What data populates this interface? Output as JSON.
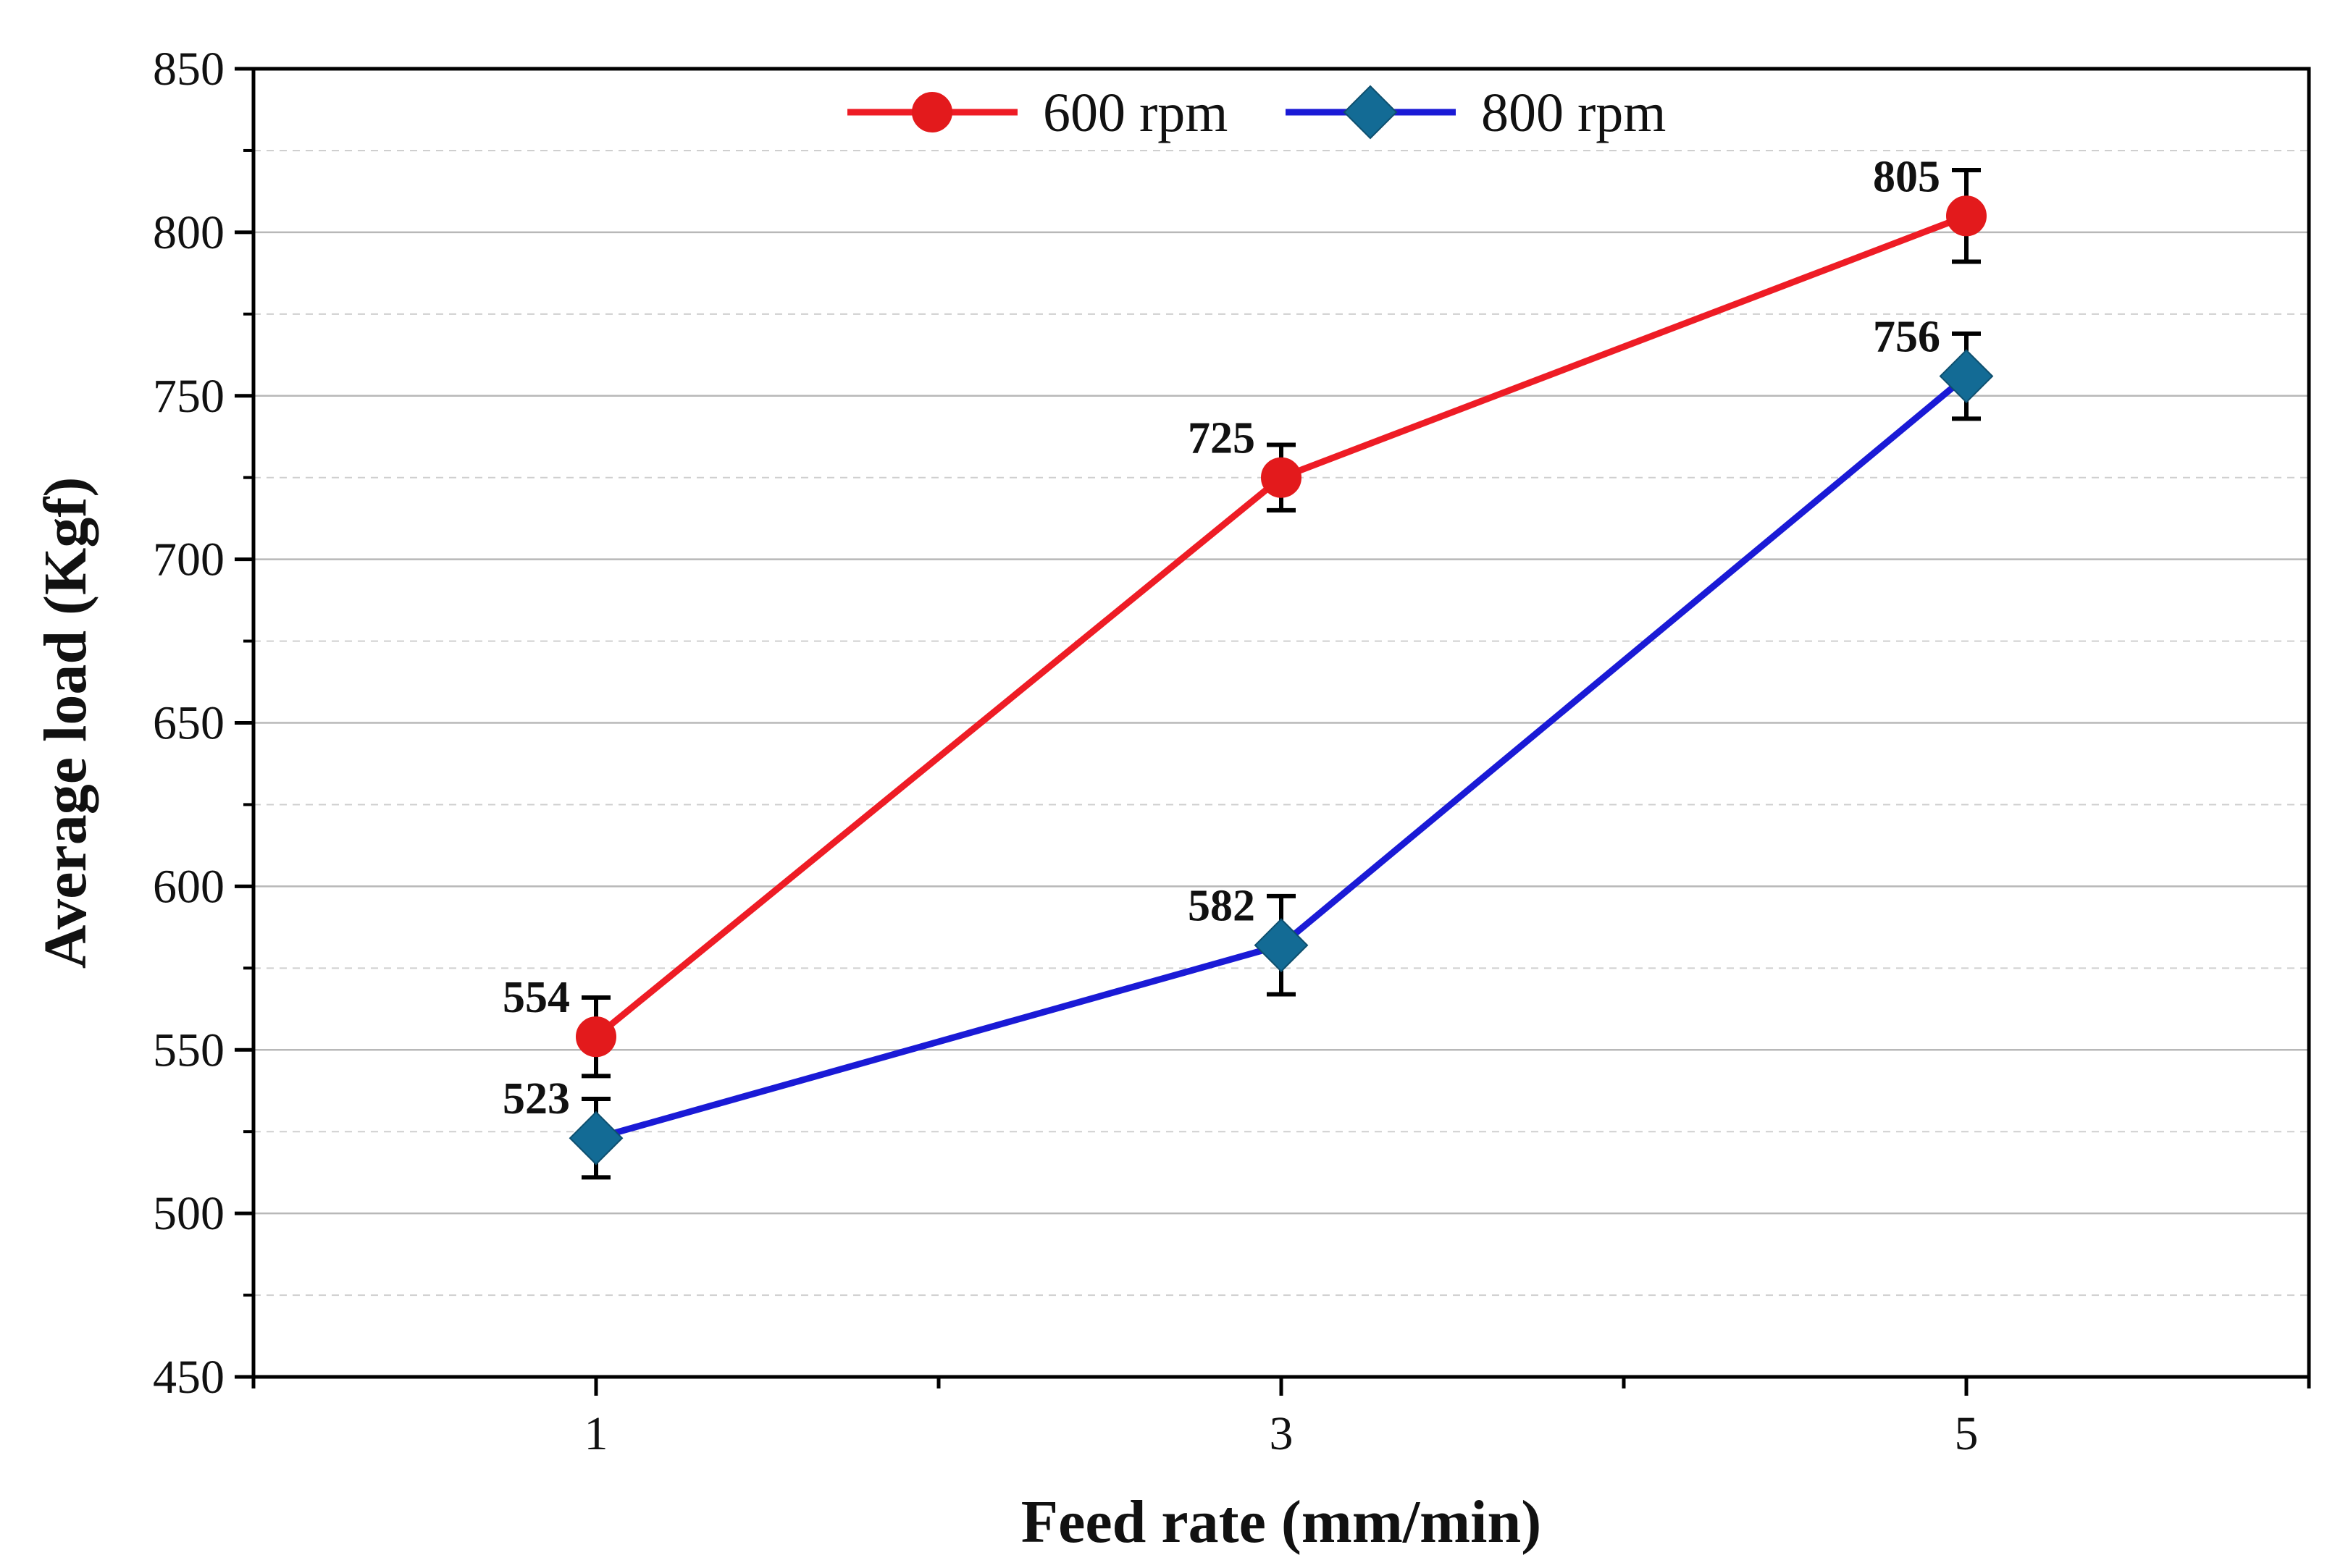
{
  "chart_data": {
    "type": "line",
    "title": "",
    "xlabel": "Feed rate (mm/min)",
    "ylabel": "Average load (Kgf)",
    "xlim": [
      0,
      6
    ],
    "ylim": [
      450,
      850
    ],
    "x_ticks": [
      1,
      3,
      5
    ],
    "x_tick_labels": [
      "1",
      "3",
      "5"
    ],
    "y_ticks": [
      450,
      500,
      550,
      600,
      650,
      700,
      750,
      800,
      850
    ],
    "y_tick_labels": [
      "450",
      "500",
      "550",
      "600",
      "650",
      "700",
      "750",
      "800",
      "850"
    ],
    "grid": "horizontal",
    "legend_position": "top-center",
    "series": [
      {
        "name": "600 rpm",
        "marker": "circle",
        "line_color": "#ee1c25",
        "marker_color": "#e31a1c",
        "x": [
          1,
          3,
          5
        ],
        "values": [
          554,
          725,
          805
        ],
        "errors": [
          12,
          10,
          14
        ],
        "labels": [
          "554",
          "725",
          "805"
        ]
      },
      {
        "name": "800 rpm",
        "marker": "diamond",
        "line_color": "#1a1ad6",
        "marker_color": "#136b95",
        "x": [
          1,
          3,
          5
        ],
        "values": [
          523,
          582,
          756
        ],
        "errors": [
          12,
          15,
          13
        ],
        "labels": [
          "523",
          "582",
          "756"
        ]
      }
    ]
  }
}
